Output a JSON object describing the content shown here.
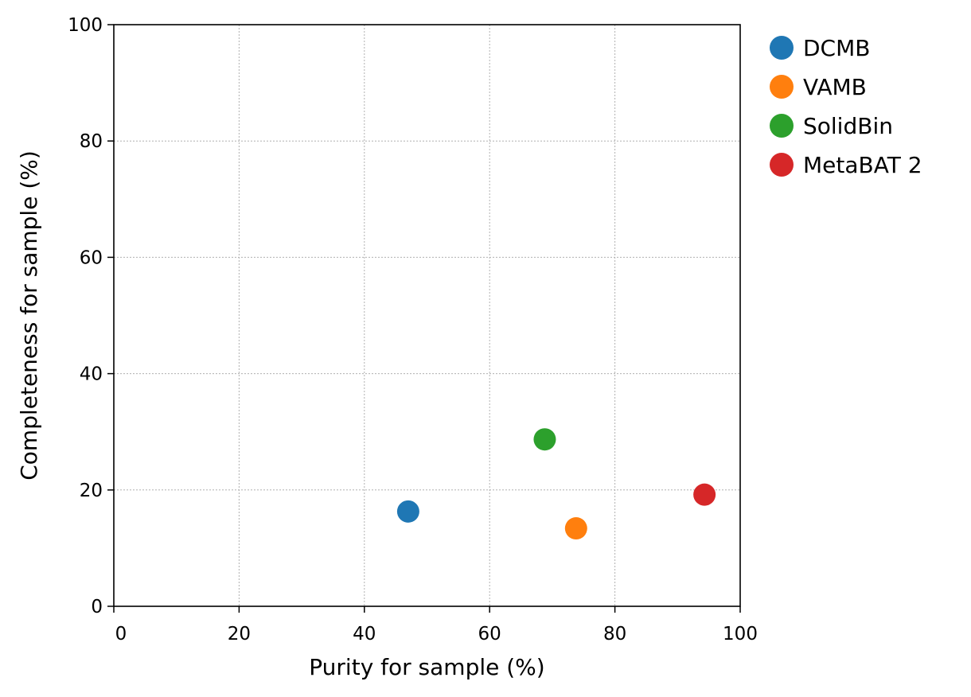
{
  "chart_data": {
    "type": "scatter",
    "title": "",
    "xlabel": "Purity for sample (%)",
    "ylabel": "Completeness for sample (%)",
    "xlim": [
      0,
      100
    ],
    "ylim": [
      0,
      100
    ],
    "xticks": [
      "0",
      "20",
      "40",
      "60",
      "80",
      "100"
    ],
    "yticks": [
      "0",
      "20",
      "40",
      "60",
      "80",
      "100"
    ],
    "grid": true,
    "legend_position": "outside-right-top",
    "series": [
      {
        "name": "DCMB",
        "color": "#1f77b4",
        "points": [
          {
            "x": 47.0,
            "y": 16.3
          }
        ]
      },
      {
        "name": "VAMB",
        "color": "#ff7f0e",
        "points": [
          {
            "x": 73.8,
            "y": 13.4
          }
        ]
      },
      {
        "name": "SolidBin",
        "color": "#2ca02c",
        "points": [
          {
            "x": 68.8,
            "y": 28.7
          }
        ]
      },
      {
        "name": "MetaBAT 2",
        "color": "#d62728",
        "points": [
          {
            "x": 94.3,
            "y": 19.2
          }
        ]
      }
    ]
  }
}
